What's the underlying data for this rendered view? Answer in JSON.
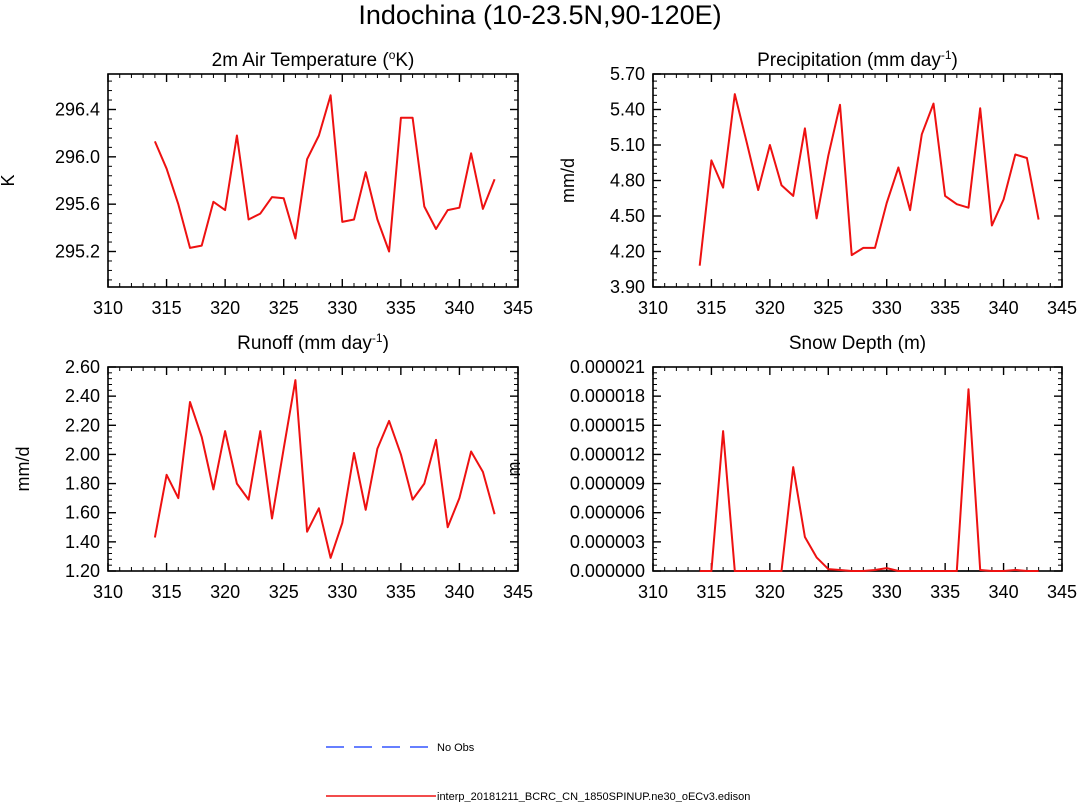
{
  "title": "Indochina (10-23.5N,90-120E)",
  "colors": {
    "model": "#ee1111",
    "obs": "#3355ff",
    "zero": "#000000"
  },
  "legend": {
    "obs_label": "No Obs",
    "model_label": "interp_20181211_BCRC_CN_1850SPINUP.ne30_oECv3.edison"
  },
  "chart_data": [
    {
      "type": "line",
      "title": "2m Air Temperature (oK)",
      "ylabel": "K",
      "xlim": [
        310,
        345
      ],
      "ylim": [
        294.9,
        296.7
      ],
      "xticks": [
        "310",
        "315",
        "320",
        "325",
        "330",
        "335",
        "340",
        "345"
      ],
      "yticks": [
        "295.2",
        "295.6",
        "296.0",
        "296.4"
      ],
      "series": [
        {
          "x": [
            314,
            315,
            316,
            317,
            318,
            319,
            320,
            321,
            322,
            323,
            324,
            325,
            326,
            327,
            328,
            329,
            330,
            331,
            332,
            333,
            334,
            335,
            336,
            337,
            338,
            339,
            340,
            341,
            342,
            343
          ],
          "values": [
            296.13,
            295.9,
            295.6,
            295.23,
            295.25,
            295.62,
            295.55,
            296.18,
            295.47,
            295.52,
            295.66,
            295.65,
            295.31,
            295.98,
            296.18,
            296.52,
            295.45,
            295.47,
            295.87,
            295.47,
            295.2,
            296.33,
            296.33,
            295.58,
            295.39,
            295.55,
            295.57,
            296.03,
            295.56,
            295.81
          ]
        }
      ]
    },
    {
      "type": "line",
      "title": "Precipitation (mm day-1)",
      "ylabel": "mm/d",
      "xlim": [
        310,
        345
      ],
      "ylim": [
        3.9,
        5.7
      ],
      "xticks": [
        "310",
        "315",
        "320",
        "325",
        "330",
        "335",
        "340",
        "345"
      ],
      "yticks": [
        "3.90",
        "4.20",
        "4.50",
        "4.80",
        "5.10",
        "5.40",
        "5.70"
      ],
      "series": [
        {
          "x": [
            314,
            315,
            316,
            317,
            318,
            319,
            320,
            321,
            322,
            323,
            324,
            325,
            326,
            327,
            328,
            329,
            330,
            331,
            332,
            333,
            334,
            335,
            336,
            337,
            338,
            339,
            340,
            341,
            342,
            343
          ],
          "values": [
            4.08,
            4.97,
            4.74,
            5.53,
            5.13,
            4.72,
            5.1,
            4.76,
            4.67,
            5.24,
            4.48,
            5.01,
            5.44,
            4.17,
            4.23,
            4.23,
            4.61,
            4.91,
            4.55,
            5.19,
            5.45,
            4.67,
            4.6,
            4.57,
            5.41,
            4.42,
            4.64,
            5.02,
            4.99,
            4.47
          ]
        }
      ]
    },
    {
      "type": "line",
      "title": "Runoff (mm day-1)",
      "ylabel": "mm/d",
      "xlim": [
        310,
        345
      ],
      "ylim": [
        1.2,
        2.6
      ],
      "xticks": [
        "310",
        "315",
        "320",
        "325",
        "330",
        "335",
        "340",
        "345"
      ],
      "yticks": [
        "1.20",
        "1.40",
        "1.60",
        "1.80",
        "2.00",
        "2.20",
        "2.40",
        "2.60"
      ],
      "series": [
        {
          "x": [
            314,
            315,
            316,
            317,
            318,
            319,
            320,
            321,
            322,
            323,
            324,
            325,
            326,
            327,
            328,
            329,
            330,
            331,
            332,
            333,
            334,
            335,
            336,
            337,
            338,
            339,
            340,
            341,
            342,
            343
          ],
          "values": [
            1.43,
            1.86,
            1.7,
            2.36,
            2.12,
            1.76,
            2.16,
            1.8,
            1.69,
            2.16,
            1.56,
            2.04,
            2.51,
            1.47,
            1.63,
            1.29,
            1.53,
            2.01,
            1.62,
            2.04,
            2.23,
            2.0,
            1.69,
            1.8,
            2.1,
            1.5,
            1.7,
            2.02,
            1.88,
            1.59
          ]
        }
      ]
    },
    {
      "type": "line",
      "title": "Snow Depth (m)",
      "ylabel": "m",
      "xlim": [
        310,
        345
      ],
      "ylim": [
        0,
        2.1e-05
      ],
      "xticks": [
        "310",
        "315",
        "320",
        "325",
        "330",
        "335",
        "340",
        "345"
      ],
      "yticks": [
        "0.000000",
        "0.000003",
        "0.000006",
        "0.000009",
        "0.000012",
        "0.000015",
        "0.000018",
        "0.000021"
      ],
      "series": [
        {
          "x": [
            314,
            315,
            316,
            317,
            318,
            319,
            320,
            321,
            322,
            323,
            324,
            325,
            326,
            327,
            328,
            329,
            330,
            331,
            332,
            333,
            334,
            335,
            336,
            337,
            338,
            339,
            340,
            341,
            342,
            343
          ],
          "values": [
            0,
            0,
            1.44e-05,
            0,
            0,
            0,
            0,
            0,
            1.07e-05,
            3.5e-06,
            1.4e-06,
            2e-07,
            1e-07,
            0,
            0,
            1e-07,
            3e-07,
            0,
            0,
            0,
            0,
            0,
            0,
            1.87e-05,
            1e-07,
            0,
            0,
            1e-07,
            0,
            0
          ]
        }
      ]
    }
  ]
}
